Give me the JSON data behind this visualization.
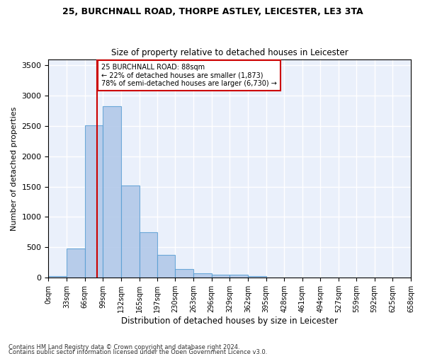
{
  "title1": "25, BURCHNALL ROAD, THORPE ASTLEY, LEICESTER, LE3 3TA",
  "title2": "Size of property relative to detached houses in Leicester",
  "xlabel": "Distribution of detached houses by size in Leicester",
  "ylabel": "Number of detached properties",
  "bin_edges": [
    0,
    33,
    66,
    99,
    132,
    165,
    197,
    230,
    263,
    296,
    329,
    362,
    395,
    428,
    461,
    494,
    527,
    559,
    592,
    625,
    658
  ],
  "bar_heights": [
    25,
    480,
    2510,
    2820,
    1520,
    750,
    380,
    140,
    75,
    55,
    55,
    30,
    0,
    0,
    0,
    0,
    0,
    0,
    0,
    0
  ],
  "bar_color": "#aec6e8",
  "bar_edge_color": "#5a9fd4",
  "bar_alpha": 0.85,
  "vline_x": 88,
  "vline_color": "#cc0000",
  "annotation_text": "25 BURCHNALL ROAD: 88sqm\n← 22% of detached houses are smaller (1,873)\n78% of semi-detached houses are larger (6,730) →",
  "annotation_box_color": "#cc0000",
  "ylim": [
    0,
    3600
  ],
  "yticks": [
    0,
    500,
    1000,
    1500,
    2000,
    2500,
    3000,
    3500
  ],
  "xlim": [
    0,
    658
  ],
  "bg_color": "#eaf0fb",
  "grid_color": "#ffffff",
  "footnote1": "Contains HM Land Registry data © Crown copyright and database right 2024.",
  "footnote2": "Contains public sector information licensed under the Open Government Licence v3.0."
}
